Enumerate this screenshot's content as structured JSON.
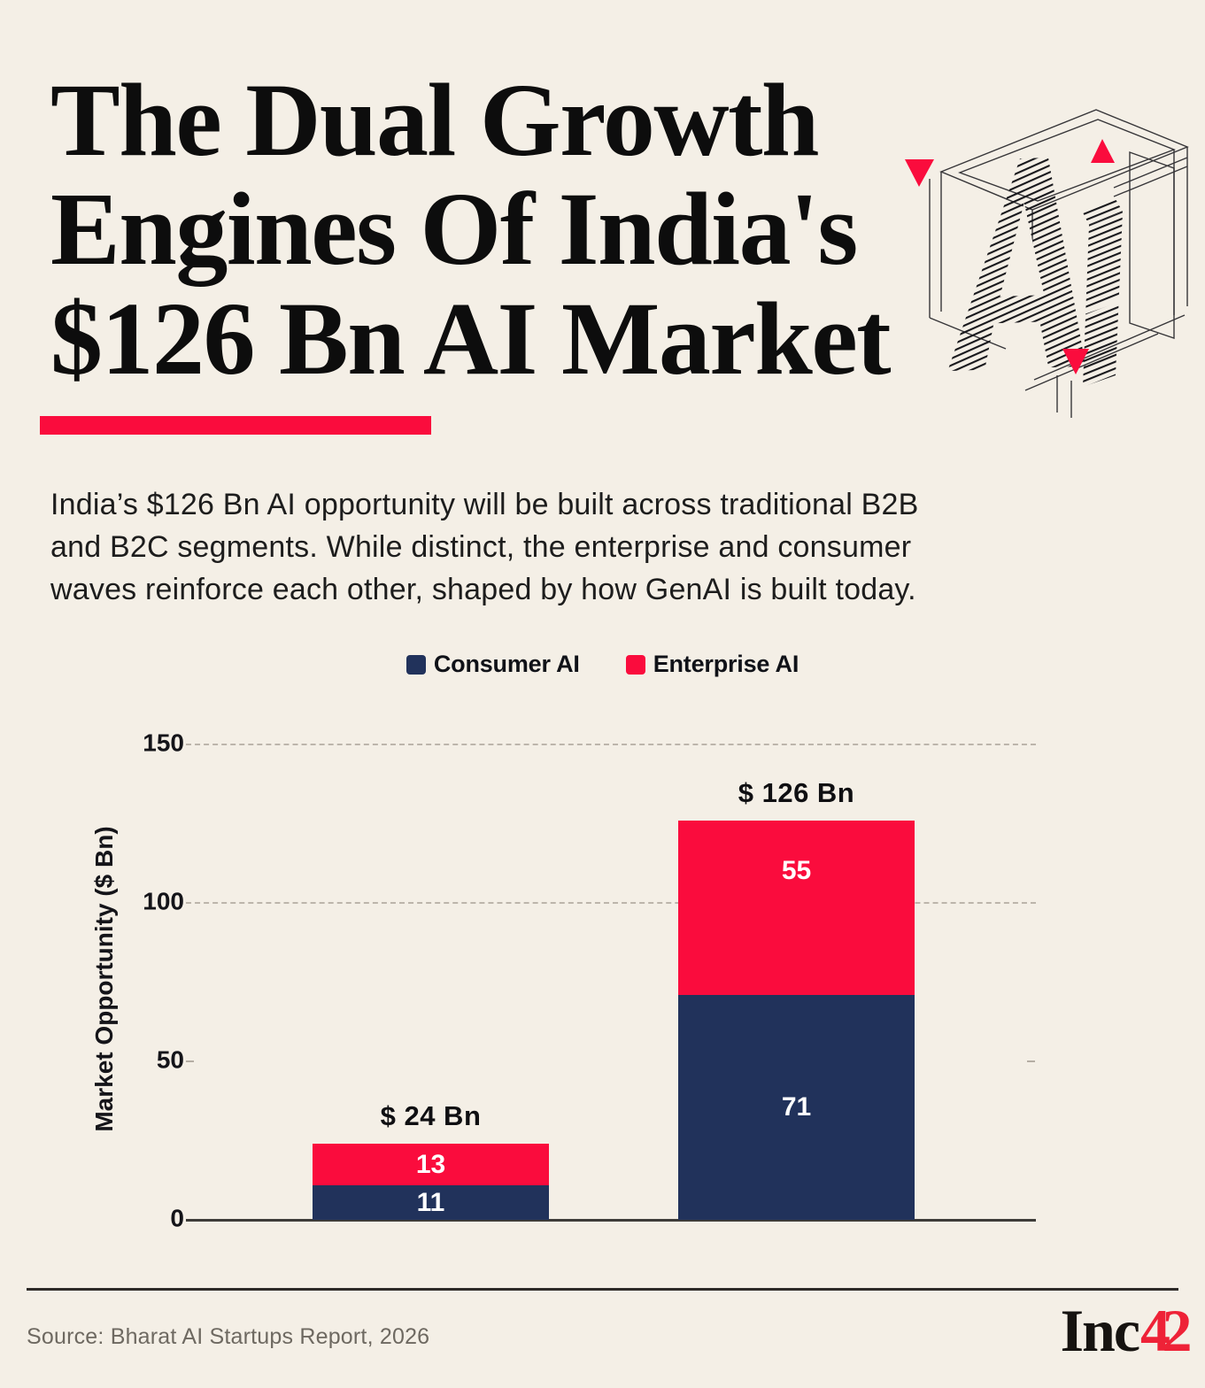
{
  "page": {
    "background": "#F4EFE6"
  },
  "header": {
    "title_lines": [
      "The Dual Growth",
      "Engines Of India's",
      "$126 Bn AI Market"
    ],
    "underline_color": "#FA0C3D",
    "graphic": "ai-wireframe-with-red-triangles"
  },
  "intro": {
    "lines": [
      "India’s $126 Bn AI opportunity will be built across traditional B2B",
      "and B2C segments. While distinct, the enterprise and consumer",
      "waves reinforce each other, shaped by how GenAI is built today."
    ],
    "text": "India’s $126 Bn AI opportunity will be built across traditional B2B and B2C segments. While distinct, the enterprise and consumer waves reinforce each other, shaped by how GenAI is built today."
  },
  "legend": {
    "items": [
      {
        "label": "Consumer AI",
        "color": "#21325B"
      },
      {
        "label": "Enterprise AI",
        "color": "#FA0C3D"
      }
    ]
  },
  "chart_data": {
    "type": "bar",
    "stacked": true,
    "categories": [
      "",
      ""
    ],
    "series": [
      {
        "name": "Consumer AI",
        "color": "#21325B",
        "values": [
          11,
          71
        ]
      },
      {
        "name": "Enterprise AI",
        "color": "#FA0C3D",
        "values": [
          13,
          55
        ]
      }
    ],
    "totals": [
      "$ 24 Bn",
      "$ 126 Bn"
    ],
    "ylabel": "Market Opportunity ($ Bn)",
    "yticks": [
      0,
      50,
      100,
      150
    ],
    "ylim": [
      0,
      150
    ],
    "grid": "horizontal dashed lines at 100 and 150, minor end-marks at 50, solid axis at 0",
    "legend_position": "top-center",
    "colors": {
      "consumer": "#21325B",
      "enterprise": "#FA0C3D"
    }
  },
  "footer": {
    "source": "Source: Bharat AI Startups Report, 2026",
    "logo_inc": "Inc",
    "logo_42": "42",
    "logo_42_color": "#EE2237"
  }
}
